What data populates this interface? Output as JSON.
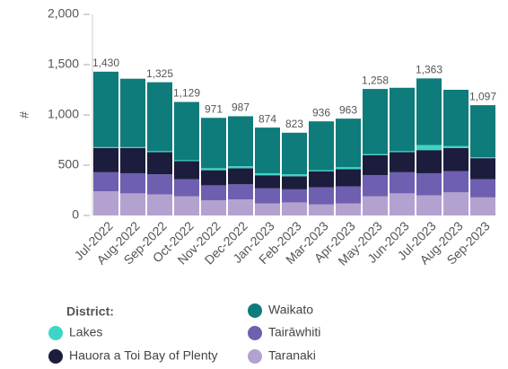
{
  "chart_data": {
    "type": "stacked_bar",
    "y_label": "#",
    "legend_title": "District:",
    "categories": [
      "Jul-2022",
      "Aug-2022",
      "Sep-2022",
      "Oct-2022",
      "Nov-2022",
      "Dec-2022",
      "Jan-2023",
      "Feb-2023",
      "Mar-2023",
      "Apr-2023",
      "May-2023",
      "Jun-2023",
      "Jul-2023",
      "Aug-2023",
      "Sep-2023"
    ],
    "series": [
      {
        "name": "Taranaki",
        "color": "#b3a2d0",
        "values": [
          240,
          220,
          210,
          190,
          150,
          160,
          120,
          130,
          110,
          120,
          190,
          220,
          200,
          230,
          180
        ]
      },
      {
        "name": "Tairāwhiti",
        "color": "#6f5fb0",
        "values": [
          190,
          200,
          200,
          170,
          150,
          150,
          150,
          130,
          170,
          170,
          210,
          210,
          220,
          210,
          180
        ]
      },
      {
        "name": "Hauora a Toi Bay of Plenty",
        "color": "#1c1c3c",
        "values": [
          240,
          250,
          220,
          180,
          150,
          160,
          130,
          130,
          160,
          170,
          200,
          200,
          230,
          230,
          210
        ]
      },
      {
        "name": "Lakes",
        "color": "#3dd6c6",
        "values": [
          10,
          10,
          10,
          10,
          20,
          20,
          20,
          20,
          10,
          20,
          10,
          10,
          50,
          20,
          10
        ]
      },
      {
        "name": "Waikato",
        "color": "#0e7c7b",
        "values": [
          750,
          680,
          685,
          579,
          501,
          497,
          454,
          413,
          486,
          483,
          648,
          630,
          663,
          560,
          517
        ]
      }
    ],
    "total_labels": [
      "1,430",
      null,
      "1,325",
      "1,129",
      "971",
      "987",
      "874",
      "823",
      "936",
      "963",
      "1,258",
      null,
      "1,363",
      null,
      "1,097"
    ],
    "ylim": [
      0,
      2000
    ],
    "yticks": [
      0,
      500,
      {
        "value": 1000,
        "label": "1,000"
      },
      {
        "value": 1500,
        "label": "1,500"
      },
      {
        "value": 2000,
        "label": "2,000"
      }
    ]
  }
}
